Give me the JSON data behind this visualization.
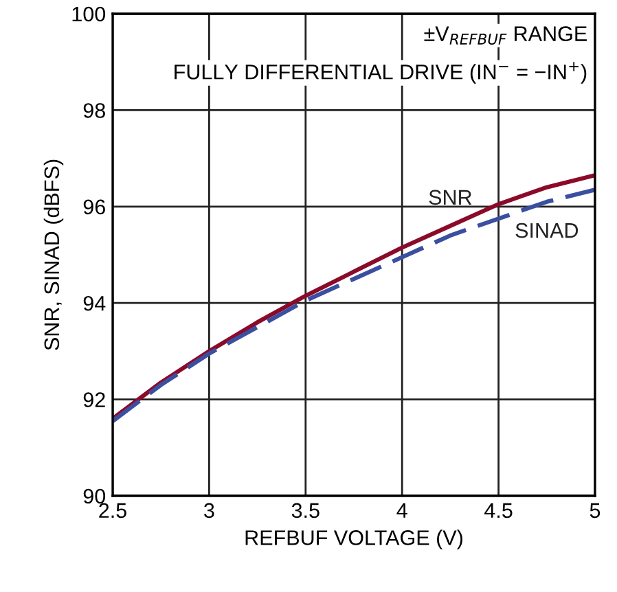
{
  "chart_data": {
    "type": "line",
    "xlabel": "REFBUF VOLTAGE (V)",
    "ylabel": "SNR, SINAD (dBFS)",
    "annotations": [
      "±V$_{REFBUF}$ RANGE",
      "FULLY DIFFERENTIAL DRIVE (IN$^{−}$ = −IN$^{+}$)"
    ],
    "x": [
      2.5,
      2.75,
      3,
      3.25,
      3.5,
      3.75,
      4,
      4.25,
      4.5,
      4.75,
      5
    ],
    "series": [
      {
        "name": "SNR",
        "color": "#8b0a2a",
        "line_style": "solid",
        "values": [
          91.6,
          92.35,
          93.0,
          93.6,
          94.15,
          94.65,
          95.15,
          95.6,
          96.05,
          96.4,
          96.65
        ]
      },
      {
        "name": "SINAD",
        "color": "#3b4fa0",
        "line_style": "dashed",
        "values": [
          91.55,
          92.3,
          92.95,
          93.5,
          94.05,
          94.5,
          94.95,
          95.4,
          95.75,
          96.1,
          96.35
        ]
      }
    ],
    "xlim": [
      2.5,
      5
    ],
    "xticks": [
      2.5,
      3,
      3.5,
      4,
      4.5,
      5
    ],
    "ylim": [
      90,
      100
    ],
    "yticks": [
      90,
      92,
      94,
      96,
      98,
      100
    ],
    "grid": true,
    "legend": false
  }
}
